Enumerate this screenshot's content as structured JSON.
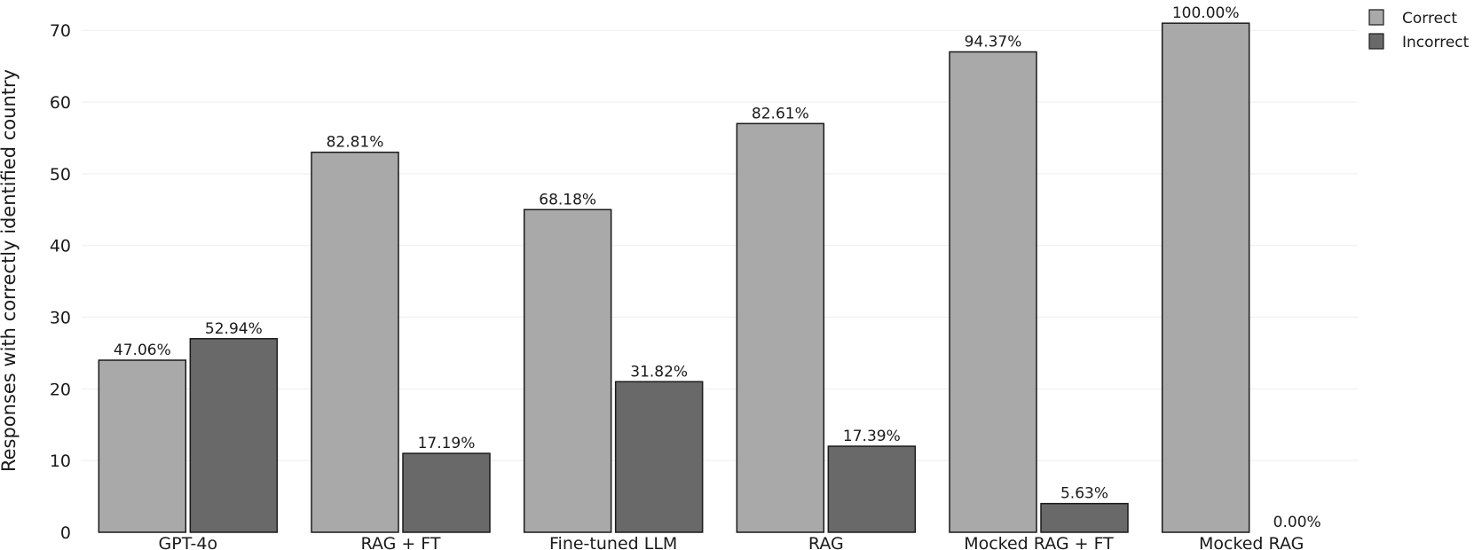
{
  "chart_data": {
    "type": "bar",
    "categories": [
      "GPT-4o",
      "RAG + FT",
      "Fine-tuned LLM",
      "RAG",
      "Mocked RAG + FT",
      "Mocked RAG"
    ],
    "series": [
      {
        "name": "Correct",
        "color": "#a9a9a9",
        "values": [
          24,
          53,
          45,
          57,
          67,
          71
        ],
        "labels": [
          "47.06%",
          "82.81%",
          "68.18%",
          "82.61%",
          "94.37%",
          "100.00%"
        ]
      },
      {
        "name": "Incorrect",
        "color": "#696969",
        "values": [
          27,
          11,
          21,
          12,
          4,
          0
        ],
        "labels": [
          "52.94%",
          "17.19%",
          "31.82%",
          "17.39%",
          "5.63%",
          "0.00%"
        ]
      }
    ],
    "xlabel": "",
    "ylabel": "Responses with correctly identified country",
    "ylim": [
      0,
      73
    ],
    "yticks": [
      0,
      10,
      20,
      30,
      40,
      50,
      60,
      70
    ],
    "grid": true,
    "legend_position": "top-right",
    "bar_outline_color": "#1a1a1a"
  }
}
